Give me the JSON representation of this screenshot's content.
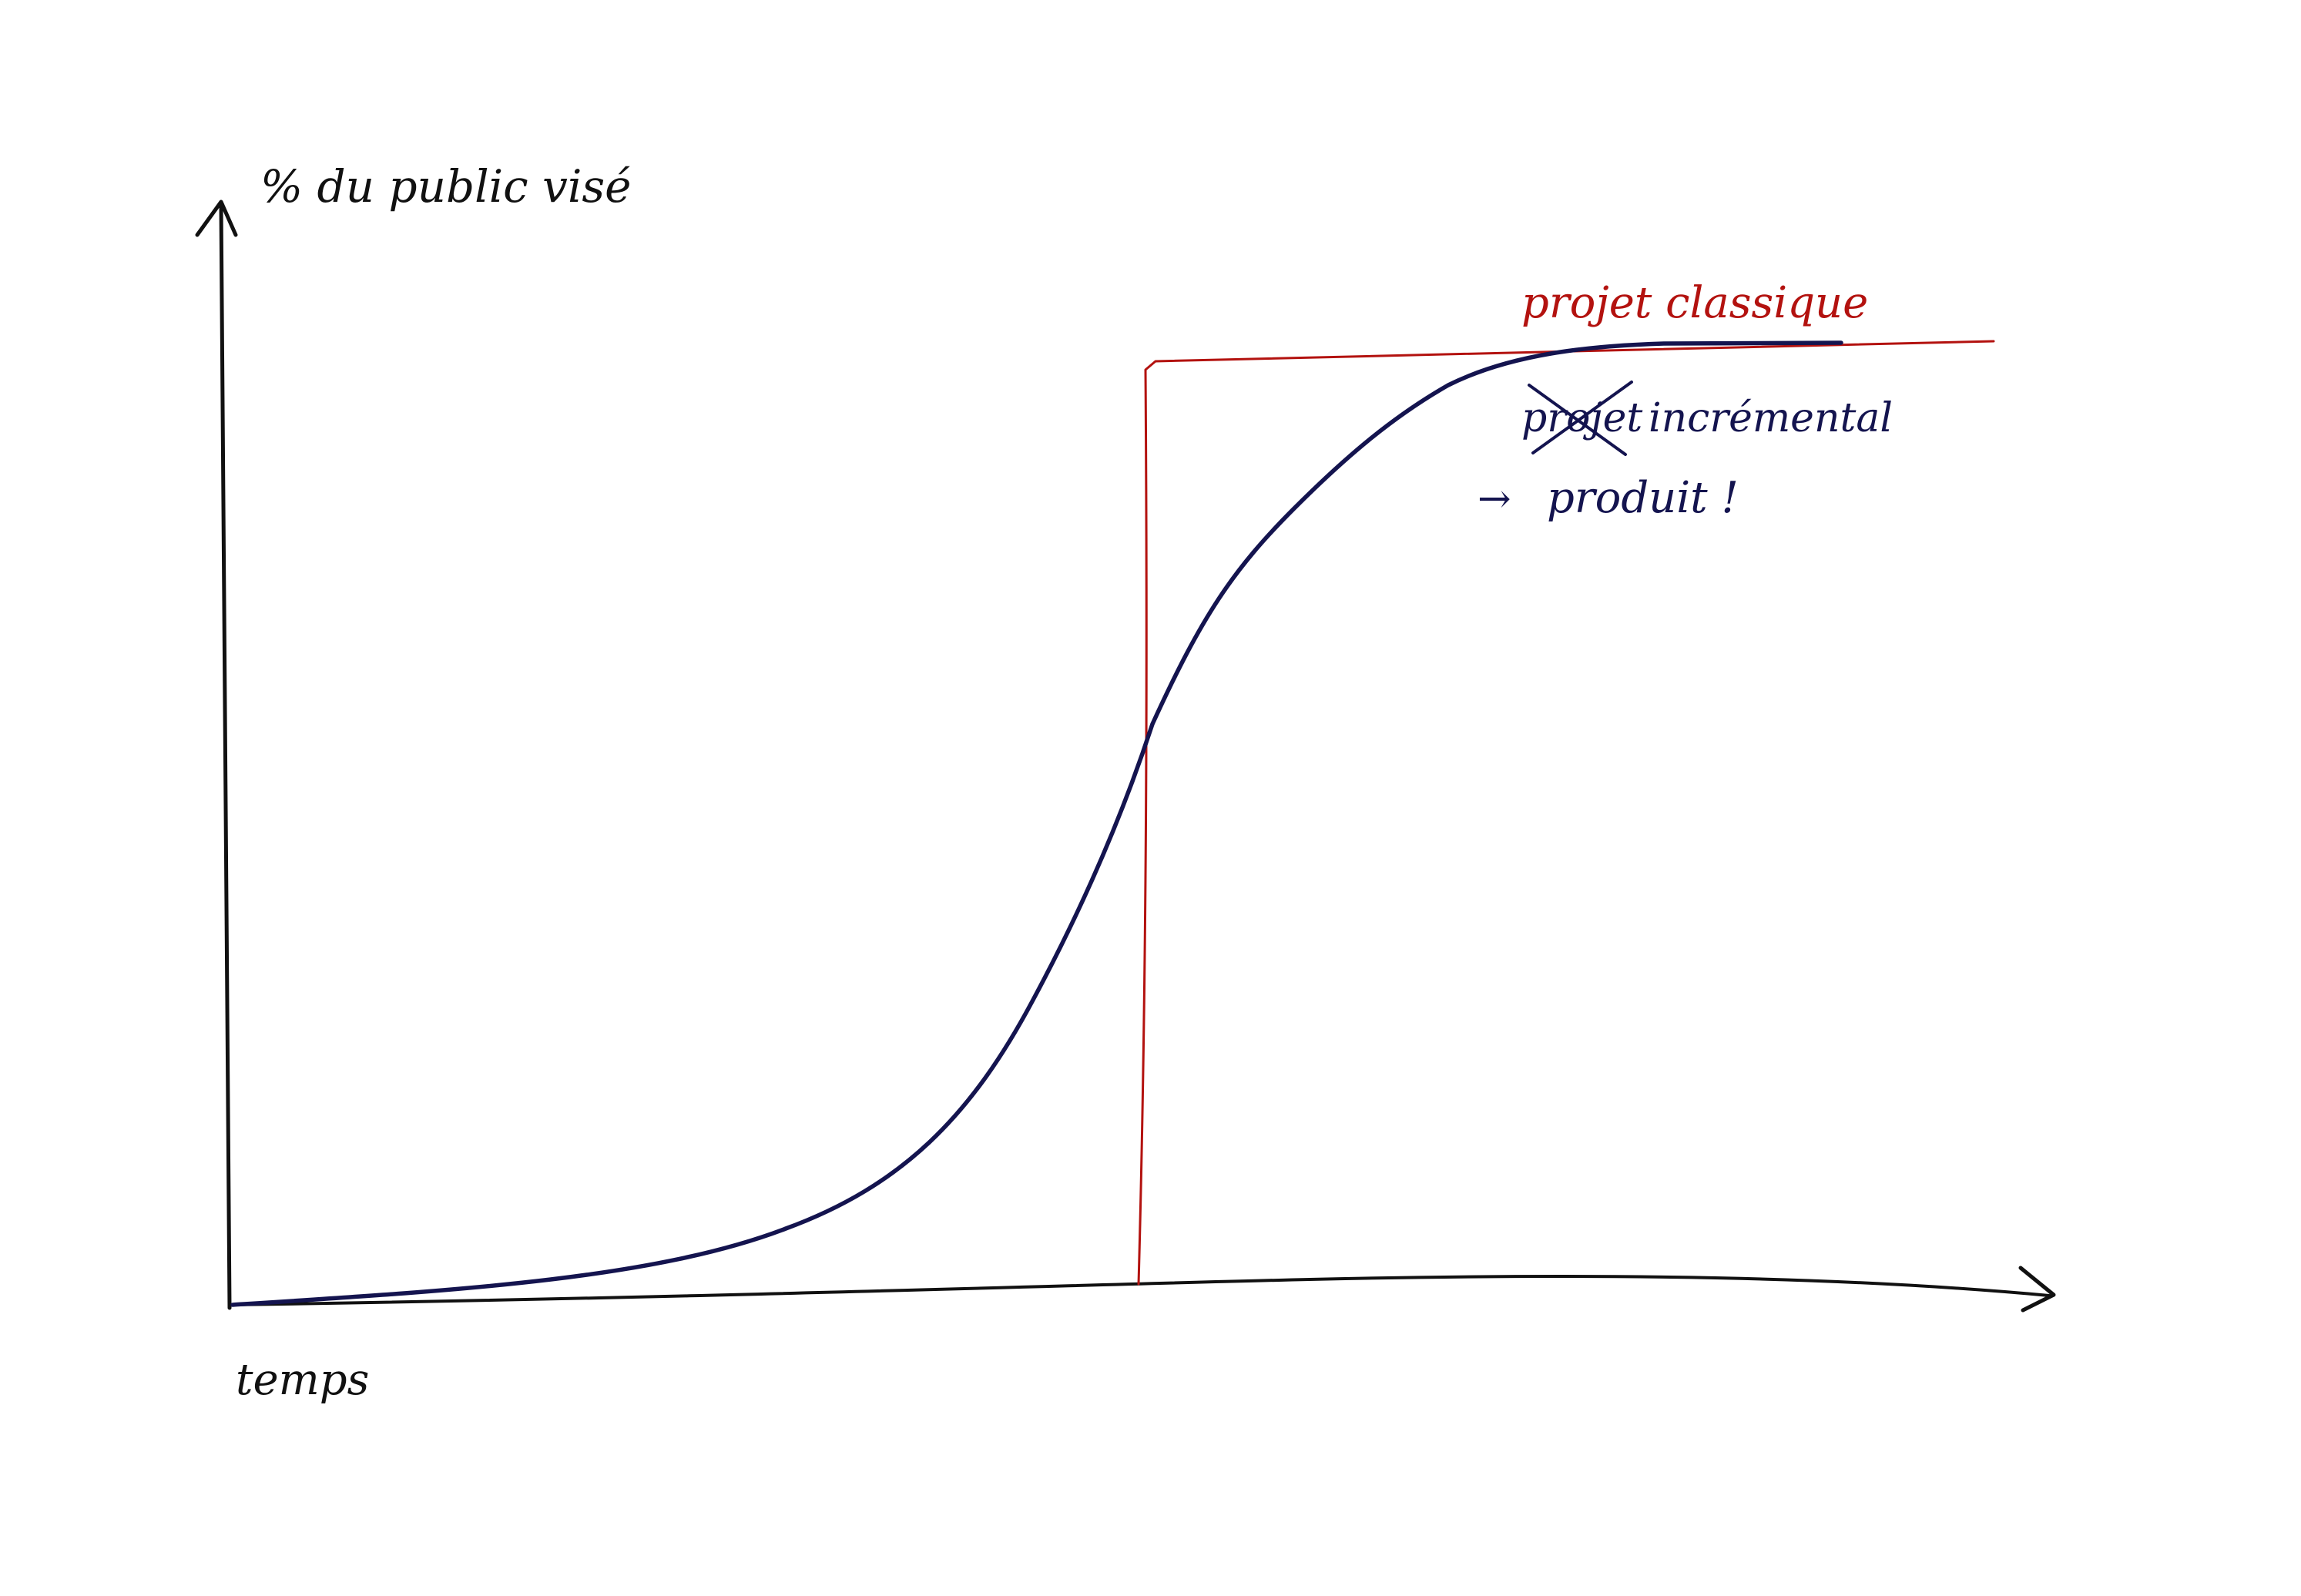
{
  "axes": {
    "y_label": "% du public visé",
    "x_label": "temps"
  },
  "annotations": {
    "classic": "projet classique",
    "incremental_struck": "projet",
    "incremental_rest": "incrémental",
    "product_arrow": "→",
    "product": "produit !"
  },
  "colors": {
    "axis": "#111111",
    "classic": "#b3120f",
    "incremental": "#14144f",
    "background": "#ffffff"
  }
}
